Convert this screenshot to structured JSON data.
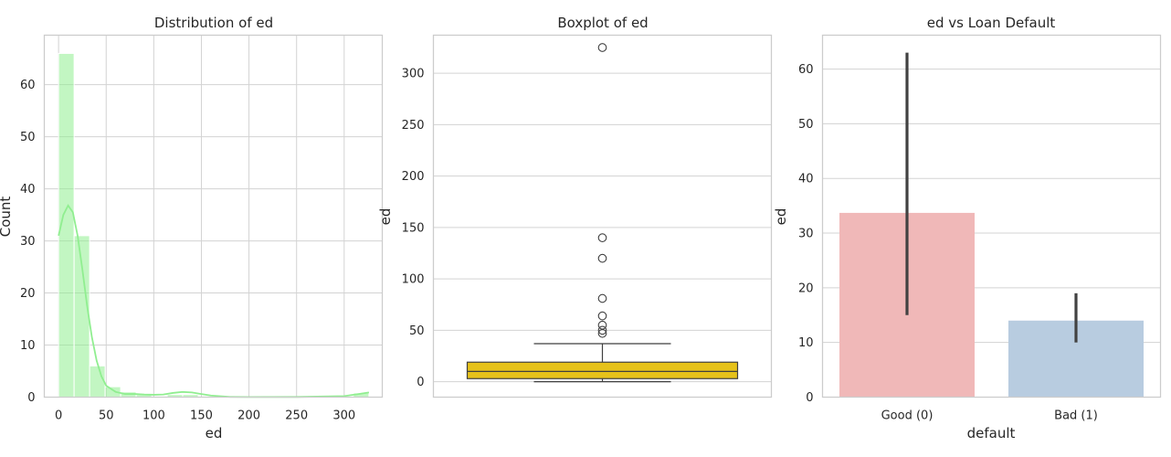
{
  "chart_data": [
    {
      "type": "histogram",
      "title": "Distribution of ed",
      "xlabel": "ed",
      "ylabel": "Count",
      "xlim": [
        -15,
        340
      ],
      "ylim": [
        0,
        69.5
      ],
      "xticks": [
        0,
        50,
        100,
        150,
        200,
        250,
        300
      ],
      "yticks": [
        0,
        10,
        20,
        30,
        40,
        50,
        60
      ],
      "grid": true,
      "bar_color": "#90ee90",
      "kde_color": "#90ee90",
      "bins": [
        {
          "x0": 0,
          "x1": 16.3,
          "count": 66
        },
        {
          "x0": 16.3,
          "x1": 32.6,
          "count": 31
        },
        {
          "x0": 32.6,
          "x1": 48.9,
          "count": 6
        },
        {
          "x0": 48.9,
          "x1": 65.2,
          "count": 2
        },
        {
          "x0": 65.2,
          "x1": 81.5,
          "count": 1
        },
        {
          "x0": 81.5,
          "x1": 97.8,
          "count": 0.5
        },
        {
          "x0": 114.1,
          "x1": 130.4,
          "count": 0.5
        },
        {
          "x0": 130.4,
          "x1": 146.7,
          "count": 0.5
        },
        {
          "x0": 309.7,
          "x1": 326,
          "count": 0.8
        }
      ],
      "kde": {
        "x": [
          0,
          5,
          10,
          15,
          20,
          25,
          30,
          35,
          40,
          45,
          50,
          60,
          70,
          80,
          90,
          100,
          110,
          120,
          130,
          140,
          150,
          160,
          180,
          200,
          250,
          300,
          315,
          326
        ],
        "y": [
          31,
          35,
          36.8,
          35.5,
          31,
          24.5,
          17.5,
          11.5,
          7,
          4,
          2.2,
          1,
          0.6,
          0.6,
          0.5,
          0.45,
          0.5,
          0.8,
          1,
          0.9,
          0.6,
          0.3,
          0.05,
          0.02,
          0.03,
          0.2,
          0.6,
          0.9
        ]
      }
    },
    {
      "type": "boxplot",
      "title": "Boxplot of ed",
      "xlabel": "",
      "ylabel": "ed",
      "ylim": [
        -15,
        337
      ],
      "yticks": [
        0,
        50,
        100,
        150,
        200,
        250,
        300
      ],
      "grid": true,
      "box_color": "#e6c21a",
      "stats": {
        "whisker_low": 0,
        "q1": 3,
        "median": 10,
        "q3": 19,
        "whisker_high": 37
      },
      "outliers": [
        47,
        50,
        55,
        64,
        81,
        120,
        140,
        325
      ]
    },
    {
      "type": "bar",
      "title": "ed vs Loan Default",
      "xlabel": "default",
      "ylabel": "ed",
      "categories": [
        "Good (0)",
        "Bad (1)"
      ],
      "values": [
        33.7,
        14
      ],
      "error_bars": [
        [
          15,
          63
        ],
        [
          10,
          19
        ]
      ],
      "colors": [
        "#f0b8b8",
        "#b8cce0"
      ],
      "ylim": [
        0,
        66.2
      ],
      "yticks": [
        0,
        10,
        20,
        30,
        40,
        50,
        60
      ],
      "grid": true
    }
  ]
}
